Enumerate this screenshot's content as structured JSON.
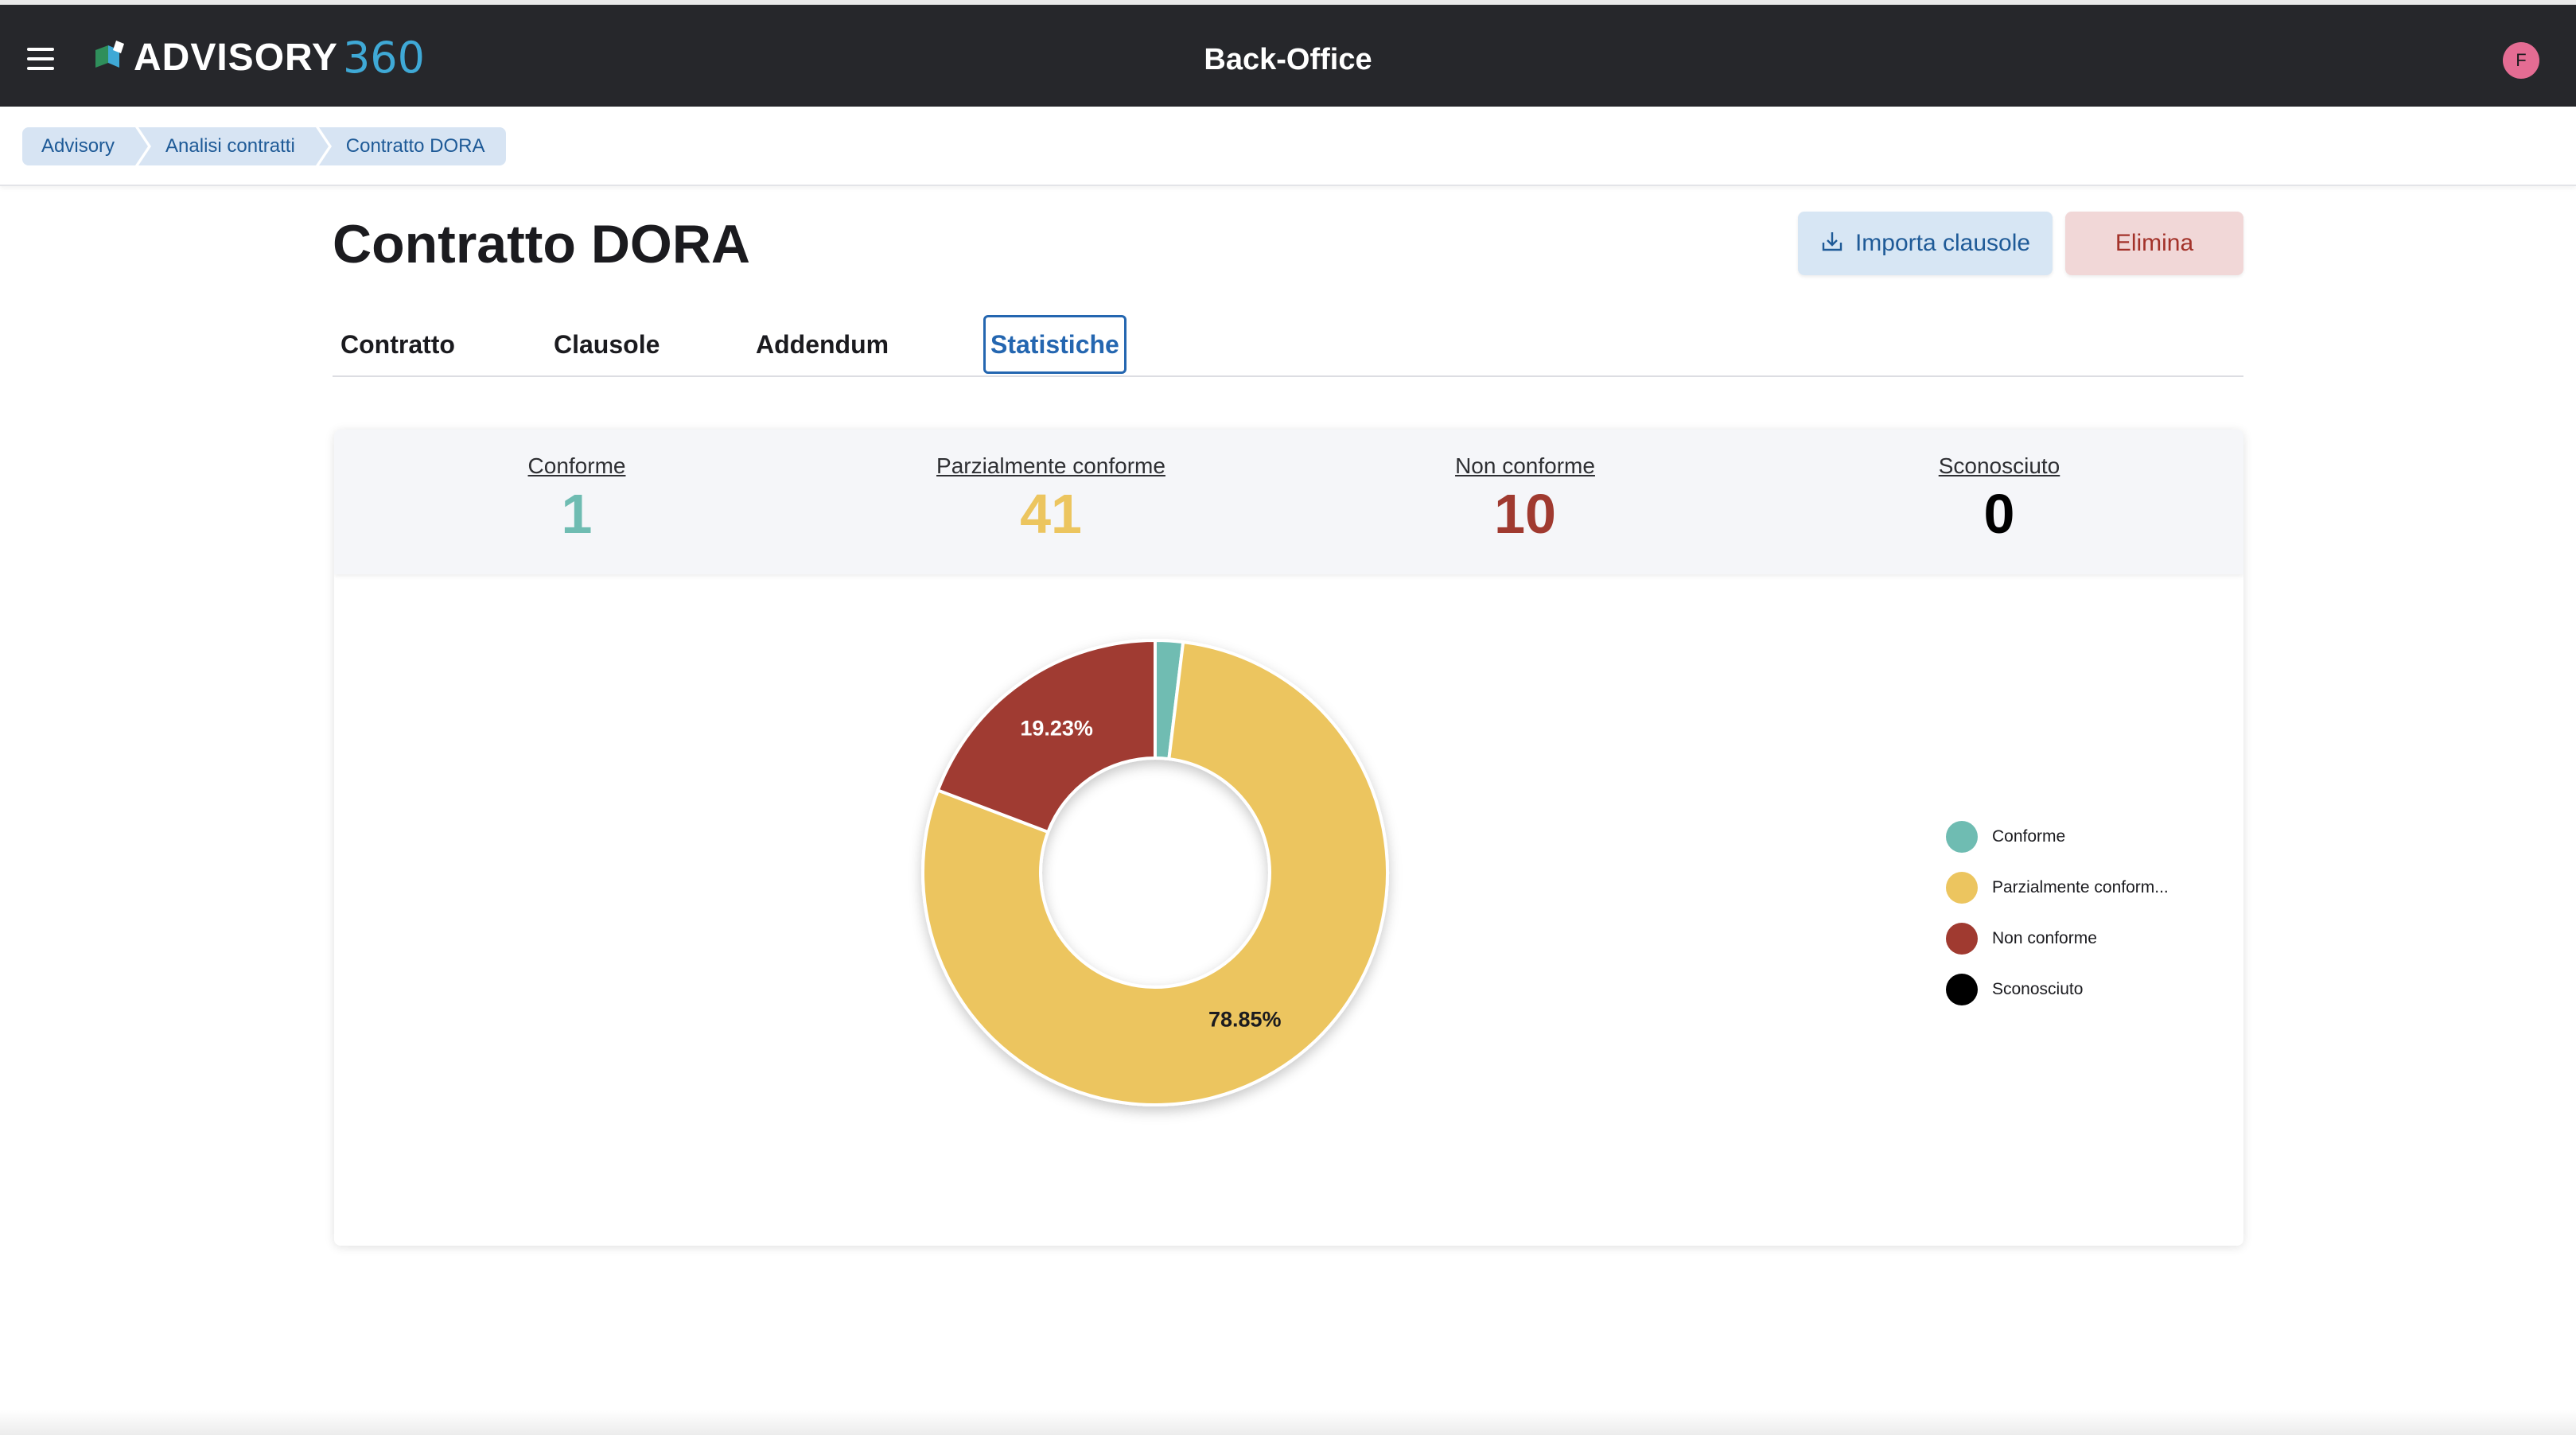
{
  "header": {
    "logo_text": "ADVISORY",
    "logo_number": "360",
    "app_title": "Back-Office",
    "avatar_initial": "F"
  },
  "breadcrumb": [
    "Advisory",
    "Analisi contratti",
    "Contratto DORA"
  ],
  "page": {
    "title": "Contratto DORA",
    "import_button": "Importa clausole",
    "delete_button": "Elimina"
  },
  "tabs": [
    "Contratto",
    "Clausole",
    "Addendum",
    "Statistiche"
  ],
  "active_tab": "Statistiche",
  "stats": [
    {
      "label": "Conforme",
      "value": "1",
      "color": "#6fbcb2"
    },
    {
      "label": "Parzialmente conforme",
      "value": "41",
      "color": "#ecc55f"
    },
    {
      "label": "Non conforme",
      "value": "10",
      "color": "#a03a30"
    },
    {
      "label": "Sconosciuto",
      "value": "0",
      "color": "#000000"
    }
  ],
  "chart_data": {
    "type": "pie",
    "donut": true,
    "categories": [
      "Conforme",
      "Parzialmente conforme",
      "Non conforme",
      "Sconosciuto"
    ],
    "values": [
      1,
      41,
      10,
      0
    ],
    "colors": [
      "#6fbcb2",
      "#ecc55f",
      "#a03a30",
      "#000000"
    ],
    "data_labels": [
      "",
      "78.85%",
      "19.23%",
      ""
    ],
    "legend_labels": [
      "Conforme",
      "Parzialmente conform...",
      "Non conforme",
      "Sconosciuto"
    ],
    "legend_position": "right"
  }
}
